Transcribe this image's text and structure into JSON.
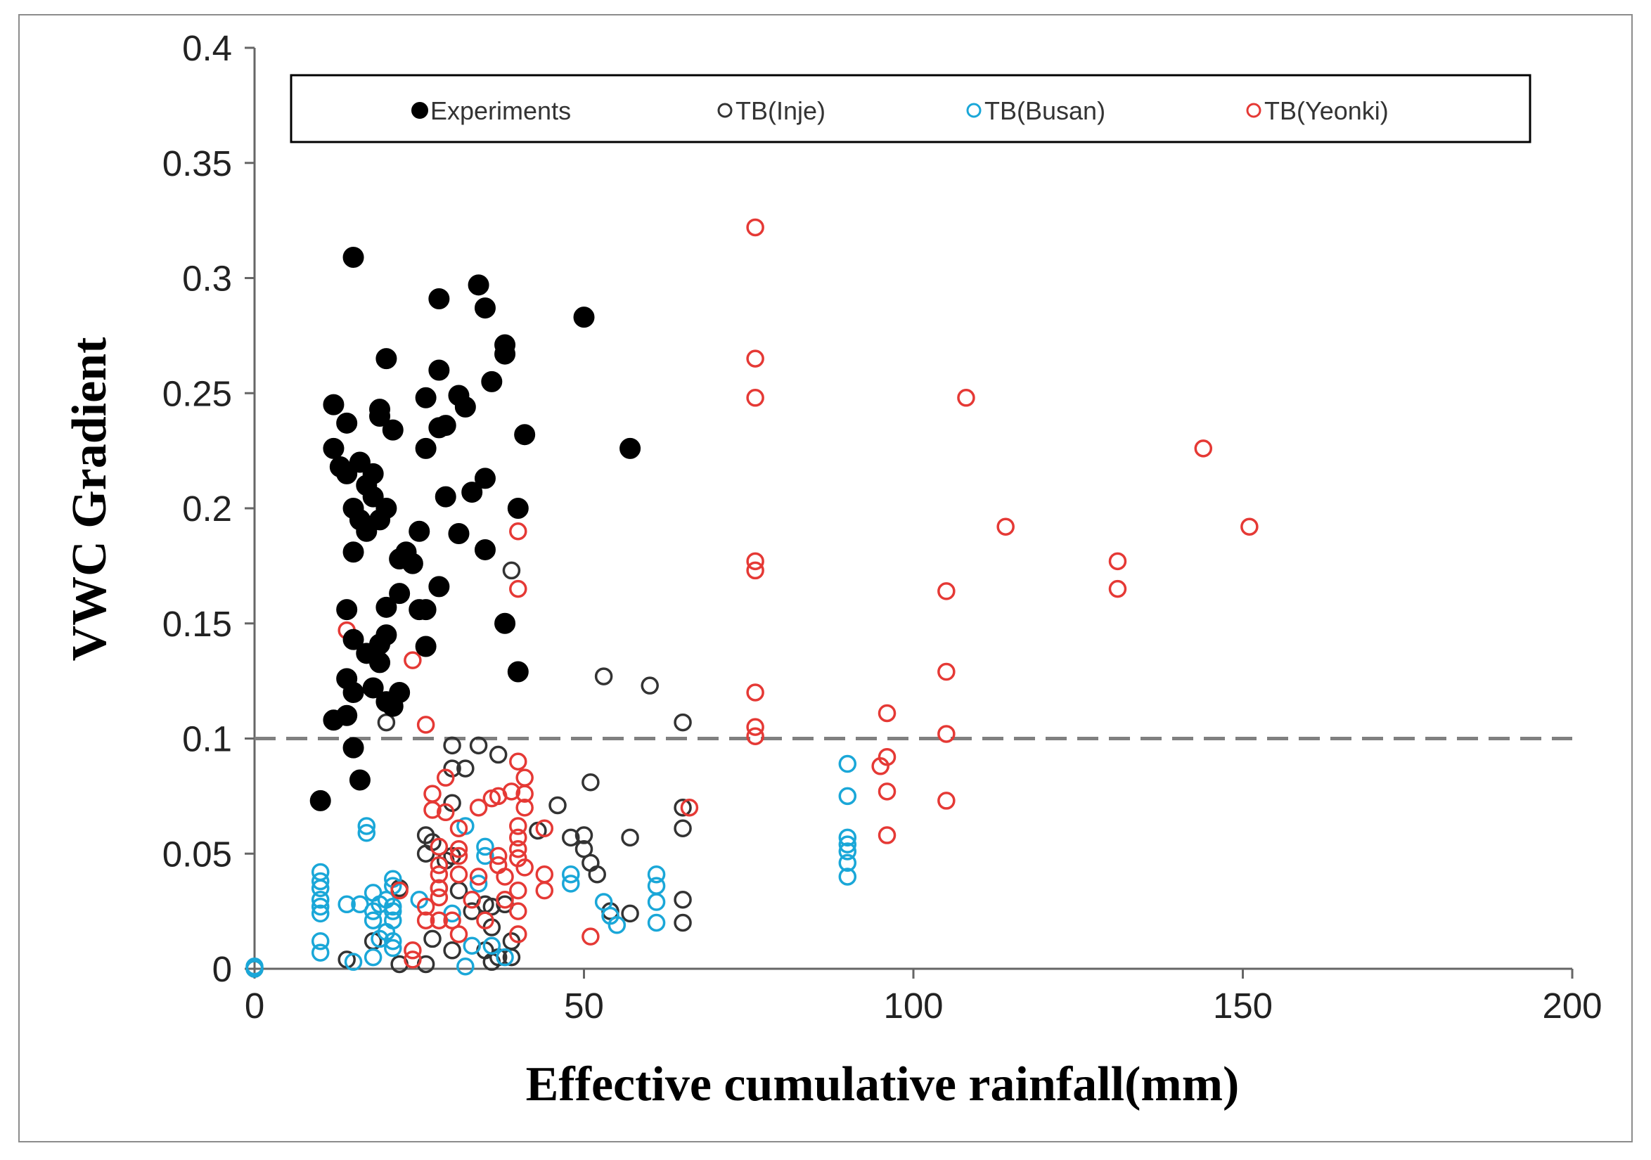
{
  "chart_data": {
    "type": "scatter",
    "title": "",
    "xlabel": "Effective cumulative rainfall(mm)",
    "ylabel": "VWC Gradient",
    "xlim": [
      0,
      200
    ],
    "ylim": [
      0,
      0.4
    ],
    "x_ticks": [
      0,
      50,
      100,
      150,
      200
    ],
    "y_ticks": [
      0,
      0.05,
      0.1,
      0.15,
      0.2,
      0.25,
      0.3,
      0.35,
      0.4
    ],
    "x_tick_labels": [
      "0",
      "50",
      "100",
      "150",
      "200"
    ],
    "y_tick_labels": [
      "0",
      "0.05",
      "0.1",
      "0.15",
      "0.2",
      "0.25",
      "0.3",
      "0.35",
      "0.4"
    ],
    "grid": false,
    "legend_position": "top",
    "reference_line": {
      "y": 0.1,
      "style": "dashed",
      "color": "#808080"
    },
    "series": [
      {
        "name": "Experiments",
        "marker": "filled-circle",
        "color": "#000000",
        "points": [
          [
            15,
            0.309
          ],
          [
            34,
            0.297
          ],
          [
            28,
            0.291
          ],
          [
            35,
            0.287
          ],
          [
            50,
            0.283
          ],
          [
            38,
            0.271
          ],
          [
            38,
            0.267
          ],
          [
            20,
            0.265
          ],
          [
            28,
            0.26
          ],
          [
            36,
            0.255
          ],
          [
            31,
            0.249
          ],
          [
            26,
            0.248
          ],
          [
            12,
            0.245
          ],
          [
            32,
            0.244
          ],
          [
            19,
            0.243
          ],
          [
            19,
            0.24
          ],
          [
            14,
            0.237
          ],
          [
            29,
            0.236
          ],
          [
            28,
            0.235
          ],
          [
            21,
            0.234
          ],
          [
            41,
            0.232
          ],
          [
            57,
            0.226
          ],
          [
            12,
            0.226
          ],
          [
            26,
            0.226
          ],
          [
            16,
            0.22
          ],
          [
            13,
            0.218
          ],
          [
            14,
            0.215
          ],
          [
            18,
            0.215
          ],
          [
            35,
            0.213
          ],
          [
            17,
            0.21
          ],
          [
            18,
            0.205
          ],
          [
            33,
            0.207
          ],
          [
            29,
            0.205
          ],
          [
            15,
            0.2
          ],
          [
            20,
            0.2
          ],
          [
            40,
            0.2
          ],
          [
            16,
            0.195
          ],
          [
            19,
            0.195
          ],
          [
            17,
            0.19
          ],
          [
            25,
            0.19
          ],
          [
            31,
            0.189
          ],
          [
            35,
            0.182
          ],
          [
            15,
            0.181
          ],
          [
            23,
            0.181
          ],
          [
            22,
            0.178
          ],
          [
            24,
            0.176
          ],
          [
            28,
            0.166
          ],
          [
            22,
            0.163
          ],
          [
            20,
            0.157
          ],
          [
            25,
            0.156
          ],
          [
            26,
            0.156
          ],
          [
            14,
            0.156
          ],
          [
            38,
            0.15
          ],
          [
            20,
            0.145
          ],
          [
            15,
            0.143
          ],
          [
            19,
            0.141
          ],
          [
            26,
            0.14
          ],
          [
            17,
            0.137
          ],
          [
            19,
            0.133
          ],
          [
            40,
            0.129
          ],
          [
            14,
            0.126
          ],
          [
            22,
            0.12
          ],
          [
            15,
            0.12
          ],
          [
            18,
            0.122
          ],
          [
            20,
            0.116
          ],
          [
            21,
            0.114
          ],
          [
            12,
            0.108
          ],
          [
            14,
            0.11
          ],
          [
            15,
            0.096
          ],
          [
            16,
            0.082
          ],
          [
            10,
            0.073
          ]
        ]
      },
      {
        "name": "TB(Inje)",
        "marker": "open-circle",
        "color": "#333333",
        "points": [
          [
            39,
            0.173
          ],
          [
            53,
            0.127
          ],
          [
            60,
            0.123
          ],
          [
            65,
            0.107
          ],
          [
            20,
            0.107
          ],
          [
            30,
            0.097
          ],
          [
            34,
            0.097
          ],
          [
            37,
            0.093
          ],
          [
            30,
            0.087
          ],
          [
            32,
            0.087
          ],
          [
            51,
            0.081
          ],
          [
            30,
            0.072
          ],
          [
            46,
            0.071
          ],
          [
            65,
            0.07
          ],
          [
            43,
            0.06
          ],
          [
            65,
            0.061
          ],
          [
            48,
            0.057
          ],
          [
            50,
            0.058
          ],
          [
            57,
            0.057
          ],
          [
            26,
            0.058
          ],
          [
            27,
            0.055
          ],
          [
            26,
            0.05
          ],
          [
            29,
            0.047
          ],
          [
            30,
            0.049
          ],
          [
            50,
            0.052
          ],
          [
            51,
            0.046
          ],
          [
            52,
            0.041
          ],
          [
            28,
            0.035
          ],
          [
            31,
            0.034
          ],
          [
            22,
            0.035
          ],
          [
            35,
            0.028
          ],
          [
            33,
            0.025
          ],
          [
            36,
            0.027
          ],
          [
            38,
            0.028
          ],
          [
            65,
            0.03
          ],
          [
            57,
            0.024
          ],
          [
            54,
            0.025
          ],
          [
            65,
            0.02
          ],
          [
            36,
            0.018
          ],
          [
            39,
            0.012
          ],
          [
            27,
            0.013
          ],
          [
            18,
            0.012
          ],
          [
            30,
            0.008
          ],
          [
            35,
            0.008
          ],
          [
            37,
            0.005
          ],
          [
            39,
            0.005
          ],
          [
            36,
            0.003
          ],
          [
            14,
            0.004
          ],
          [
            22,
            0.002
          ],
          [
            26,
            0.002
          ],
          [
            0,
            0
          ]
        ]
      },
      {
        "name": "TB(Busan)",
        "marker": "open-circle",
        "color": "#1aa7d8",
        "points": [
          [
            90,
            0.089
          ],
          [
            90,
            0.075
          ],
          [
            32,
            0.062
          ],
          [
            17,
            0.062
          ],
          [
            17,
            0.059
          ],
          [
            90,
            0.057
          ],
          [
            90,
            0.054
          ],
          [
            90,
            0.051
          ],
          [
            90,
            0.046
          ],
          [
            90,
            0.04
          ],
          [
            35,
            0.053
          ],
          [
            35,
            0.049
          ],
          [
            10,
            0.042
          ],
          [
            10,
            0.038
          ],
          [
            10,
            0.035
          ],
          [
            10,
            0.03
          ],
          [
            10,
            0.027
          ],
          [
            10,
            0.024
          ],
          [
            48,
            0.041
          ],
          [
            48,
            0.037
          ],
          [
            61,
            0.041
          ],
          [
            61,
            0.036
          ],
          [
            61,
            0.029
          ],
          [
            61,
            0.02
          ],
          [
            21,
            0.039
          ],
          [
            21,
            0.036
          ],
          [
            18,
            0.033
          ],
          [
            20,
            0.03
          ],
          [
            19,
            0.028
          ],
          [
            16,
            0.028
          ],
          [
            14,
            0.028
          ],
          [
            25,
            0.03
          ],
          [
            21,
            0.027
          ],
          [
            21,
            0.025
          ],
          [
            18,
            0.025
          ],
          [
            18,
            0.021
          ],
          [
            21,
            0.021
          ],
          [
            20,
            0.016
          ],
          [
            19,
            0.013
          ],
          [
            21,
            0.012
          ],
          [
            21,
            0.009
          ],
          [
            10,
            0.012
          ],
          [
            10,
            0.007
          ],
          [
            18,
            0.005
          ],
          [
            15,
            0.003
          ],
          [
            32,
            0.001
          ],
          [
            38,
            0.005
          ],
          [
            53,
            0.029
          ],
          [
            54,
            0.023
          ],
          [
            55,
            0.019
          ],
          [
            36,
            0.01
          ],
          [
            33,
            0.01
          ],
          [
            30,
            0.024
          ],
          [
            34,
            0.037
          ],
          [
            0,
            0
          ],
          [
            0,
            0.001
          ]
        ]
      },
      {
        "name": "TB(Yeonki)",
        "marker": "open-circle",
        "color": "#e53935",
        "points": [
          [
            76,
            0.322
          ],
          [
            76,
            0.265
          ],
          [
            76,
            0.248
          ],
          [
            108,
            0.248
          ],
          [
            144,
            0.226
          ],
          [
            114,
            0.192
          ],
          [
            151,
            0.192
          ],
          [
            40,
            0.19
          ],
          [
            76,
            0.177
          ],
          [
            76,
            0.173
          ],
          [
            131,
            0.177
          ],
          [
            131,
            0.165
          ],
          [
            40,
            0.165
          ],
          [
            105,
            0.164
          ],
          [
            14,
            0.147
          ],
          [
            24,
            0.134
          ],
          [
            105,
            0.129
          ],
          [
            76,
            0.12
          ],
          [
            96,
            0.111
          ],
          [
            76,
            0.105
          ],
          [
            26,
            0.106
          ],
          [
            105,
            0.102
          ],
          [
            76,
            0.101
          ],
          [
            96,
            0.092
          ],
          [
            95,
            0.088
          ],
          [
            40,
            0.09
          ],
          [
            41,
            0.083
          ],
          [
            29,
            0.083
          ],
          [
            39,
            0.077
          ],
          [
            41,
            0.076
          ],
          [
            96,
            0.077
          ],
          [
            27,
            0.076
          ],
          [
            37,
            0.075
          ],
          [
            36,
            0.074
          ],
          [
            105,
            0.073
          ],
          [
            66,
            0.07
          ],
          [
            34,
            0.07
          ],
          [
            27,
            0.069
          ],
          [
            41,
            0.07
          ],
          [
            29,
            0.068
          ],
          [
            40,
            0.062
          ],
          [
            44,
            0.061
          ],
          [
            40,
            0.057
          ],
          [
            31,
            0.061
          ],
          [
            28,
            0.053
          ],
          [
            96,
            0.058
          ],
          [
            31,
            0.052
          ],
          [
            31,
            0.049
          ],
          [
            40,
            0.052
          ],
          [
            40,
            0.048
          ],
          [
            37,
            0.049
          ],
          [
            37,
            0.045
          ],
          [
            41,
            0.044
          ],
          [
            28,
            0.045
          ],
          [
            31,
            0.041
          ],
          [
            28,
            0.041
          ],
          [
            34,
            0.04
          ],
          [
            38,
            0.04
          ],
          [
            44,
            0.041
          ],
          [
            28,
            0.035
          ],
          [
            22,
            0.034
          ],
          [
            40,
            0.034
          ],
          [
            44,
            0.034
          ],
          [
            38,
            0.03
          ],
          [
            28,
            0.031
          ],
          [
            33,
            0.03
          ],
          [
            26,
            0.027
          ],
          [
            40,
            0.025
          ],
          [
            28,
            0.021
          ],
          [
            30,
            0.021
          ],
          [
            35,
            0.021
          ],
          [
            26,
            0.021
          ],
          [
            31,
            0.015
          ],
          [
            51,
            0.014
          ],
          [
            40,
            0.015
          ],
          [
            24,
            0.008
          ],
          [
            24,
            0.004
          ]
        ]
      }
    ]
  }
}
